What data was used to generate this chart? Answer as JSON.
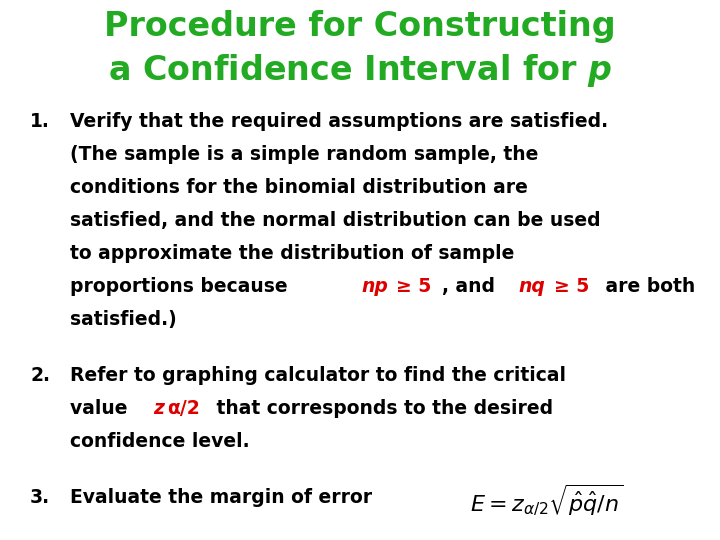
{
  "title_color": "#22aa22",
  "background_color": "#ffffff",
  "text_color": "#000000",
  "red_color": "#dd0000",
  "title_line1": "Procedure for Constructing",
  "title_line2": "a Confidence Interval for ",
  "title_p": "p",
  "figsize": [
    7.2,
    5.4
  ],
  "dpi": 100,
  "title_fontsize": 24,
  "body_fontsize": 13.5,
  "num_fontsize": 13.5
}
